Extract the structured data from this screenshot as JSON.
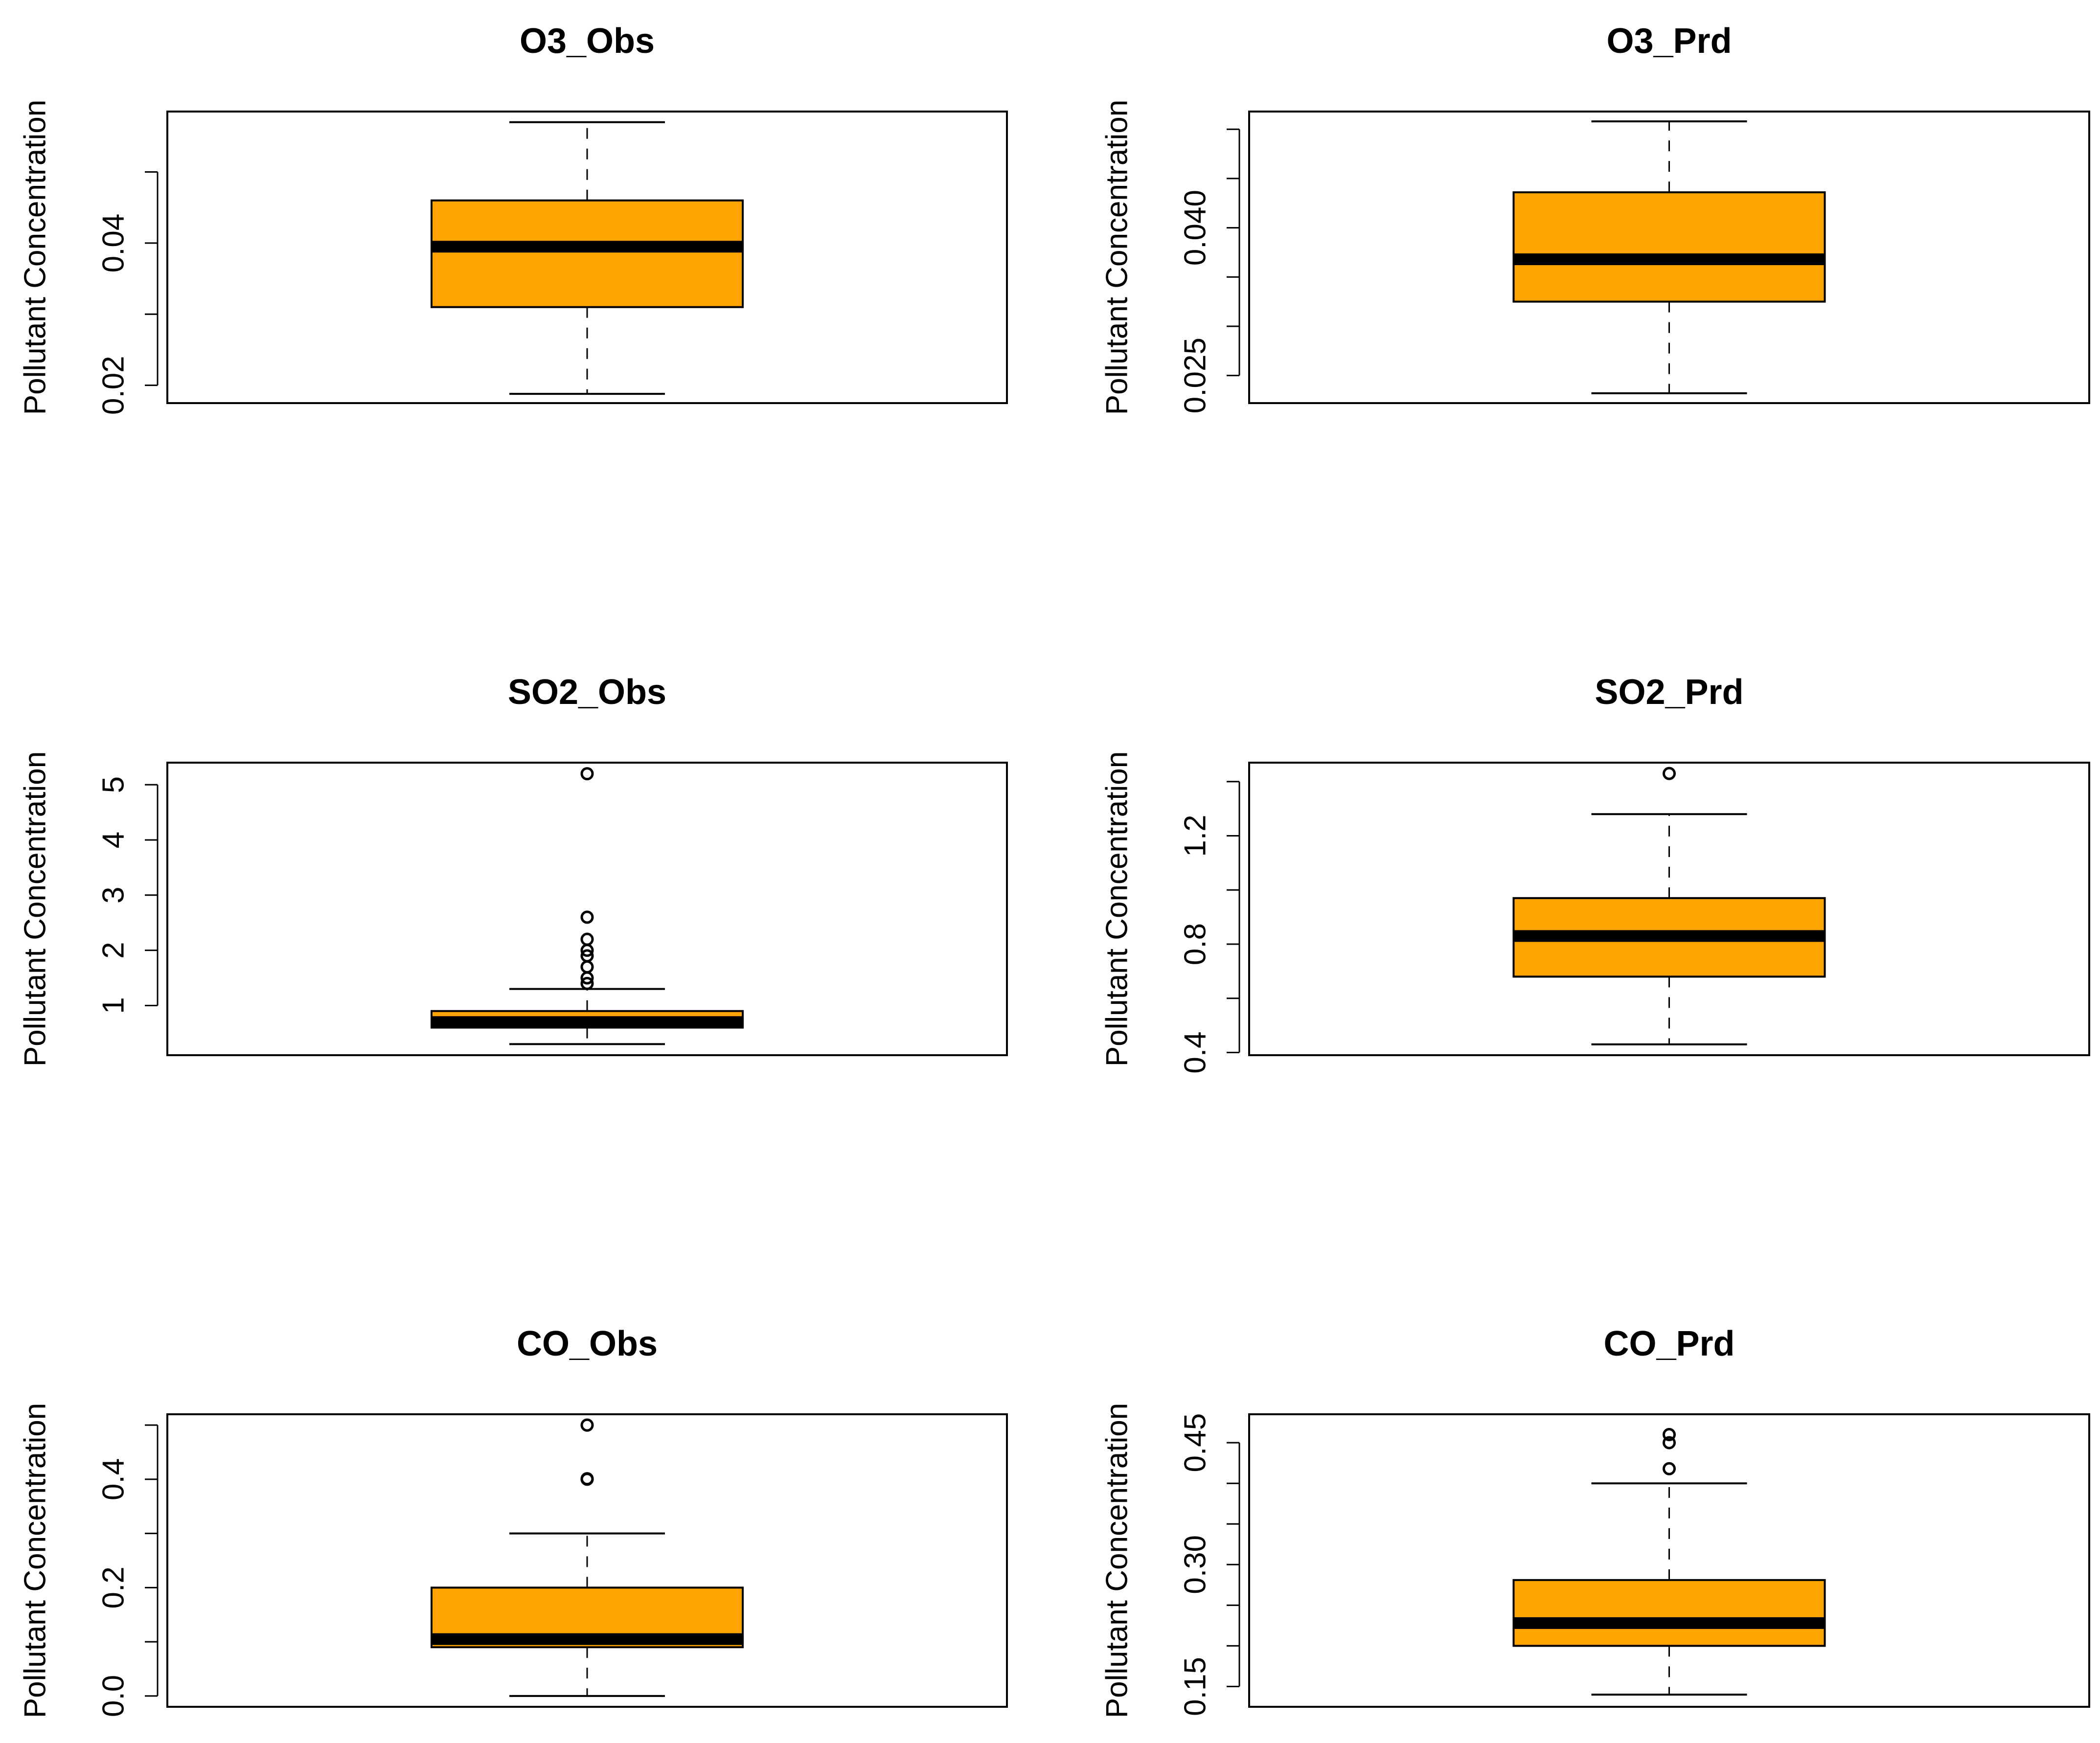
{
  "figure": {
    "box_fill": "#FFA500",
    "line_color": "#000000"
  },
  "chart_data": [
    {
      "type": "boxplot",
      "title": "O3_Obs",
      "ylabel": "Pollutant Concentration",
      "xlabel": "",
      "ylim": [
        0.0175,
        0.0585
      ],
      "yticks": [
        0.02,
        0.03,
        0.04,
        0.05
      ],
      "ytick_labels": [
        "0.02",
        "",
        "0.04",
        ""
      ],
      "stats": {
        "whisker_low": 0.0188,
        "q1": 0.031,
        "median": 0.0395,
        "q3": 0.046,
        "whisker_high": 0.057
      },
      "outliers": []
    },
    {
      "type": "boxplot",
      "title": "O3_Prd",
      "ylabel": "Pollutant Concentration",
      "xlabel": "",
      "ylim": [
        0.0222,
        0.0518
      ],
      "yticks": [
        0.025,
        0.03,
        0.035,
        0.04,
        0.045,
        0.05
      ],
      "ytick_labels": [
        "0.025",
        "",
        "",
        "0.040",
        "",
        ""
      ],
      "stats": {
        "whisker_low": 0.0232,
        "q1": 0.0325,
        "median": 0.0368,
        "q3": 0.0436,
        "whisker_high": 0.0508
      },
      "outliers": []
    },
    {
      "type": "boxplot",
      "title": "SO2_Obs",
      "ylabel": "Pollutant Concentration",
      "xlabel": "",
      "ylim": [
        0.1,
        5.4
      ],
      "yticks": [
        1,
        2,
        3,
        4,
        5
      ],
      "ytick_labels": [
        "1",
        "2",
        "3",
        "4",
        "5"
      ],
      "stats": {
        "whisker_low": 0.3,
        "q1": 0.6,
        "median": 0.7,
        "q3": 0.9,
        "whisker_high": 1.3
      },
      "outliers": [
        1.4,
        1.5,
        1.7,
        1.9,
        2.0,
        2.2,
        2.6,
        5.2
      ]
    },
    {
      "type": "boxplot",
      "title": "SO2_Prd",
      "ylabel": "Pollutant Concentration",
      "xlabel": "",
      "ylim": [
        0.39,
        1.47
      ],
      "yticks": [
        0.4,
        0.6,
        0.8,
        1.0,
        1.2,
        1.4
      ],
      "ytick_labels": [
        "0.4",
        "",
        "0.8",
        "",
        "1.2",
        ""
      ],
      "stats": {
        "whisker_low": 0.43,
        "q1": 0.68,
        "median": 0.83,
        "q3": 0.97,
        "whisker_high": 1.28
      },
      "outliers": [
        1.43
      ]
    },
    {
      "type": "boxplot",
      "title": "CO_Obs",
      "ylabel": "Pollutant Concentration",
      "xlabel": "",
      "ylim": [
        -0.02,
        0.52
      ],
      "yticks": [
        0.0,
        0.1,
        0.2,
        0.3,
        0.4,
        0.5
      ],
      "ytick_labels": [
        "0.0",
        "",
        "0.2",
        "",
        "0.4",
        ""
      ],
      "stats": {
        "whisker_low": 0.0,
        "q1": 0.09,
        "median": 0.105,
        "q3": 0.2,
        "whisker_high": 0.3
      },
      "outliers": [
        0.4,
        0.401,
        0.5
      ]
    },
    {
      "type": "boxplot",
      "title": "CO_Prd",
      "ylabel": "Pollutant Concentration",
      "xlabel": "",
      "ylim": [
        0.125,
        0.485
      ],
      "yticks": [
        0.15,
        0.2,
        0.25,
        0.3,
        0.35,
        0.4,
        0.45
      ],
      "ytick_labels": [
        "0.15",
        "",
        "",
        "0.30",
        "",
        "",
        "0.45"
      ],
      "stats": {
        "whisker_low": 0.14,
        "q1": 0.2,
        "median": 0.228,
        "q3": 0.281,
        "whisker_high": 0.4
      },
      "outliers": [
        0.418,
        0.45,
        0.46
      ]
    }
  ]
}
